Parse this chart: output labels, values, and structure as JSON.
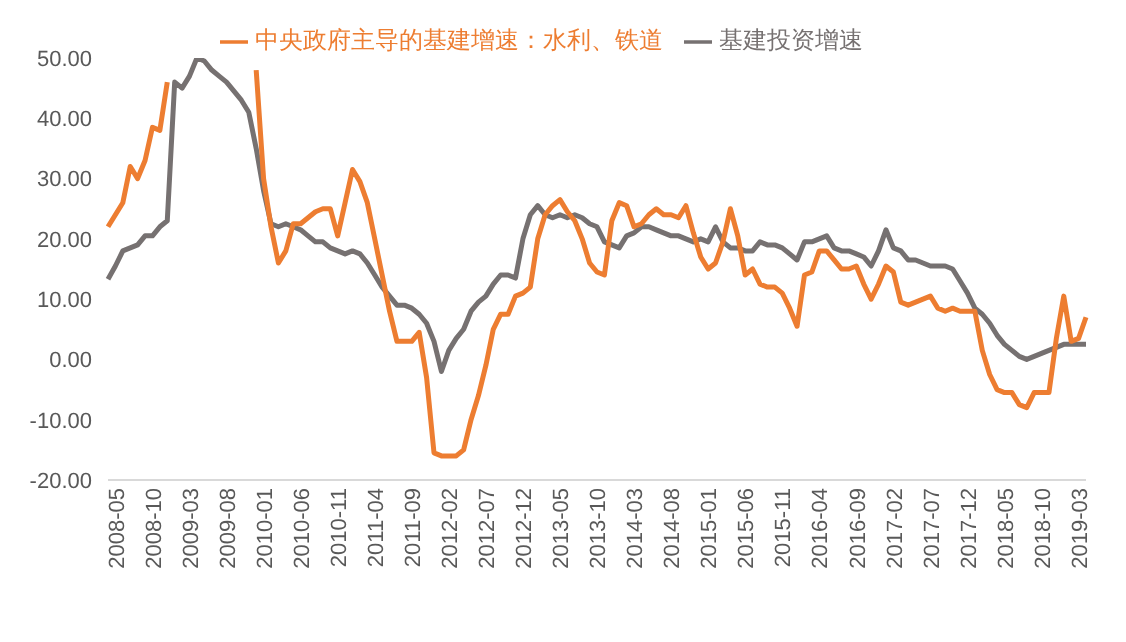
{
  "chart_data": {
    "type": "line",
    "categories": [
      "2008-05",
      null,
      null,
      null,
      null,
      "2008-10",
      null,
      null,
      null,
      null,
      "2009-03",
      null,
      null,
      null,
      null,
      "2009-08",
      null,
      null,
      null,
      null,
      "2010-01",
      null,
      null,
      null,
      null,
      "2010-06",
      null,
      null,
      null,
      null,
      "2010-11",
      null,
      null,
      null,
      null,
      "2011-04",
      null,
      null,
      null,
      null,
      "2011-09",
      null,
      null,
      null,
      null,
      "2012-02",
      null,
      null,
      null,
      null,
      "2012-07",
      null,
      null,
      null,
      null,
      "2012-12",
      null,
      null,
      null,
      null,
      "2013-05",
      null,
      null,
      null,
      null,
      "2013-10",
      null,
      null,
      null,
      null,
      "2014-03",
      null,
      null,
      null,
      null,
      "2014-08",
      null,
      null,
      null,
      null,
      "2015-01",
      null,
      null,
      null,
      null,
      "2015-06",
      null,
      null,
      null,
      null,
      "2015-11",
      null,
      null,
      null,
      null,
      "2016-04",
      null,
      null,
      null,
      null,
      "2016-09",
      null,
      null,
      null,
      null,
      "2017-02",
      null,
      null,
      null,
      null,
      "2017-07",
      null,
      null,
      null,
      null,
      "2017-12",
      null,
      null,
      null,
      null,
      "2018-05",
      null,
      null,
      null,
      null,
      "2018-10",
      null,
      null,
      null,
      null,
      "2019-03",
      null,
      null
    ],
    "series": [
      {
        "name": "基建投资增速",
        "color": "#767171",
        "values": [
          13.3,
          15.5,
          18,
          18.5,
          19,
          20.5,
          20.5,
          22,
          23,
          46,
          45,
          47,
          50,
          49.5,
          48,
          47,
          46,
          44.5,
          43,
          41,
          35,
          28,
          22.5,
          22,
          22.5,
          22,
          21.5,
          20.5,
          19.5,
          19.5,
          18.5,
          18,
          17.5,
          18,
          17.5,
          16,
          14,
          12,
          10.5,
          9,
          9,
          8.5,
          7.5,
          6,
          3,
          -2,
          1.5,
          3.5,
          5,
          8,
          9.5,
          10.5,
          12.5,
          14,
          14,
          13.5,
          20,
          24,
          25.5,
          24,
          23.5,
          24,
          23.5,
          24,
          23.5,
          22.5,
          22,
          19.5,
          19,
          18.5,
          20.5,
          21,
          22,
          22,
          21.5,
          21,
          20.5,
          20.5,
          20,
          19.5,
          20,
          19.5,
          22,
          19.5,
          18.5,
          18.5,
          18,
          18,
          19.5,
          19,
          19,
          18.5,
          17.5,
          16.5,
          19.5,
          19.5,
          20,
          20.5,
          18.5,
          18,
          18,
          17.5,
          17,
          15.5,
          18,
          21.5,
          18.5,
          18,
          16.5,
          16.5,
          16,
          15.5,
          15.5,
          15.5,
          15,
          13,
          11,
          8.5,
          7.5,
          6,
          4,
          2.5,
          1.5,
          0.5,
          0,
          0.5,
          1,
          1.5,
          2,
          2.5,
          2.5,
          2.5,
          2.5
        ]
      },
      {
        "name": "中央政府主导的基建增速：水利、铁道",
        "color": "#ed7d31",
        "values": [
          22,
          24,
          26,
          32,
          30,
          33,
          38.5,
          38,
          46,
          null,
          null,
          null,
          null,
          null,
          null,
          null,
          null,
          null,
          null,
          null,
          48,
          30,
          22,
          16,
          18,
          22.5,
          22.5,
          23.5,
          24.5,
          25,
          25,
          20.5,
          26,
          31.5,
          29.5,
          26,
          20,
          14,
          8,
          3,
          3,
          3,
          4.5,
          -3,
          -15.5,
          -16,
          -16,
          -16,
          -15,
          -10,
          -6,
          -1,
          5,
          7.5,
          7.5,
          10.5,
          11,
          12,
          20,
          24,
          25.5,
          26.5,
          24.5,
          23,
          20,
          16,
          14.5,
          14,
          23,
          26,
          25.5,
          22,
          22.5,
          24,
          25,
          24,
          24,
          23.5,
          25.5,
          21,
          17,
          15,
          16,
          19.5,
          25,
          20.5,
          14,
          15,
          12.5,
          12,
          12,
          11,
          8.5,
          5.5,
          14,
          14.5,
          18,
          18,
          16.5,
          15,
          15,
          15.5,
          12.5,
          10,
          12.5,
          15.5,
          14.5,
          9.5,
          9,
          9.5,
          10,
          10.5,
          8.5,
          8,
          8.5,
          8,
          8,
          8,
          1.5,
          -2.5,
          -5,
          -5.5,
          -5.5,
          -7.5,
          -8,
          -5.5,
          -5.5,
          -5.5,
          3.5,
          10.5,
          3,
          3.5,
          7
        ]
      }
    ],
    "ylim": [
      -20,
      50
    ],
    "yticks": [
      {
        "value": -20,
        "label": "-20.00"
      },
      {
        "value": -10,
        "label": "-10.00"
      },
      {
        "value": 0,
        "label": "0.00"
      },
      {
        "value": 10,
        "label": "10.00"
      },
      {
        "value": 20,
        "label": "20.00"
      },
      {
        "value": 30,
        "label": "30.00"
      },
      {
        "value": 40,
        "label": "40.00"
      },
      {
        "value": 50,
        "label": "50.00"
      }
    ],
    "legend": "top",
    "grid": false,
    "marker": "none",
    "line_style": "solid"
  }
}
